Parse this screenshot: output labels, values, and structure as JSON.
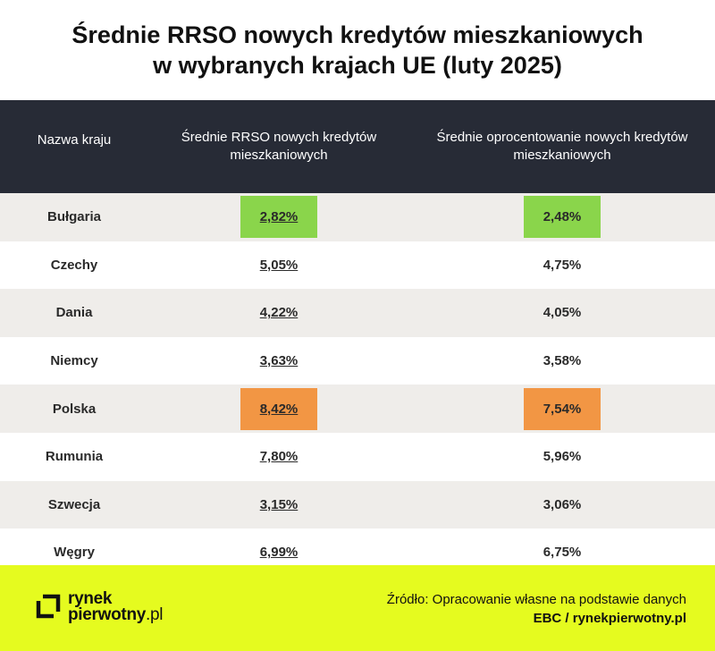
{
  "title": {
    "line1": "Średnie RRSO nowych kredytów mieszkaniowych",
    "line2": "w wybranych krajach UE (luty 2025)"
  },
  "chart_data": {
    "type": "table",
    "columns": [
      "Nazwa kraju",
      "Średnie RRSO nowych kredytów mieszkaniowych",
      "Średnie oprocentowanie nowych kredytów mieszkaniowych"
    ],
    "rows": [
      {
        "country": "Bułgaria",
        "rrso": "2,82%",
        "rate": "2,48%",
        "highlight": "green"
      },
      {
        "country": "Czechy",
        "rrso": "5,05%",
        "rate": "4,75%",
        "highlight": ""
      },
      {
        "country": "Dania",
        "rrso": "4,22%",
        "rate": "4,05%",
        "highlight": ""
      },
      {
        "country": "Niemcy",
        "rrso": "3,63%",
        "rate": "3,58%",
        "highlight": ""
      },
      {
        "country": "Polska",
        "rrso": "8,42%",
        "rate": "7,54%",
        "highlight": "orange"
      },
      {
        "country": "Rumunia",
        "rrso": "7,80%",
        "rate": "5,96%",
        "highlight": ""
      },
      {
        "country": "Szwecja",
        "rrso": "3,15%",
        "rate": "3,06%",
        "highlight": ""
      },
      {
        "country": "Węgry",
        "rrso": "6,99%",
        "rate": "6,75%",
        "highlight": ""
      }
    ]
  },
  "colors": {
    "header_bg": "#272b36",
    "row_alt": "#efedea",
    "highlight_green": "#8ad54b",
    "highlight_orange": "#f29644",
    "footer_bg": "#e5fb1f"
  },
  "footer": {
    "logo_line1": "rynek",
    "logo_line2": "pierwotny",
    "logo_tld": ".pl",
    "logo_icon": "bracket-square-icon",
    "source_line1": "Źródło: Opracowanie własne na podstawie danych",
    "source_line2": "EBC / rynekpierwotny.pl"
  }
}
